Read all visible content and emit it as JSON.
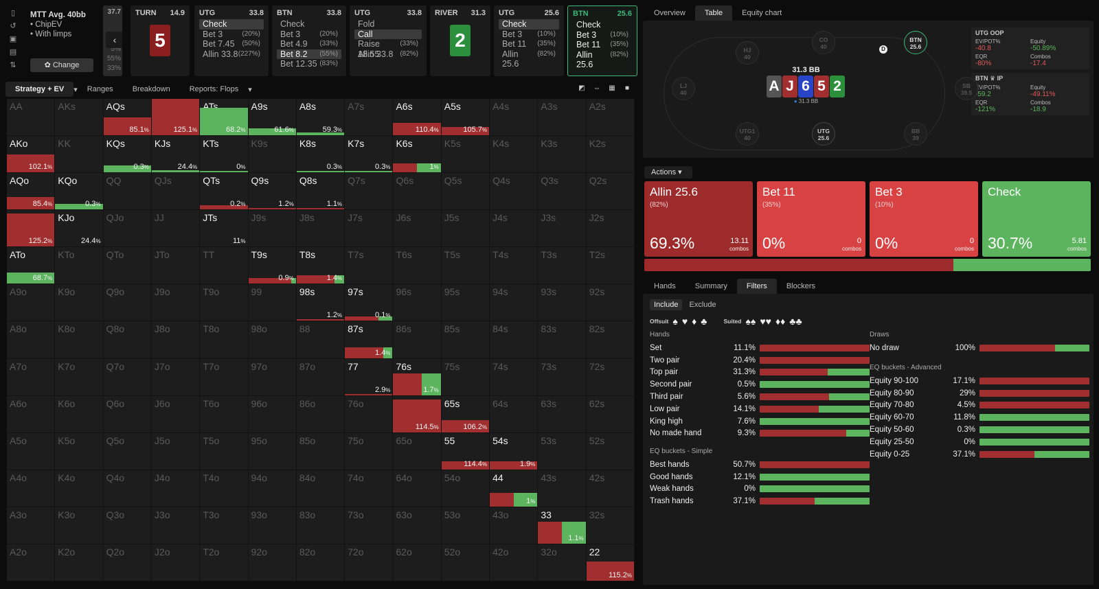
{
  "sidebar_icons": [
    "bookmark-icon",
    "history-icon",
    "save-icon",
    "library-icon",
    "sort-icon"
  ],
  "game": {
    "title": "MTT  Avg. 40bb",
    "items": [
      "ChipEV",
      "With limps"
    ],
    "change_label": "Change"
  },
  "prev_col": {
    "value": "37.7",
    "pcts": [
      "5%",
      "55%",
      "33%"
    ]
  },
  "streets": [
    {
      "pos": "TURN",
      "val": "14.9",
      "card": "5",
      "card_color": "#8b1f1f"
    },
    {
      "pos": "UTG",
      "val": "33.8",
      "opts": [
        {
          "l": "Check",
          "p": "",
          "sel": true
        },
        {
          "l": "Bet 3",
          "p": "(20%)"
        },
        {
          "l": "Bet 7.45",
          "p": "(50%)"
        },
        {
          "l": "Allin 33.8",
          "p": "(227%)"
        }
      ]
    },
    {
      "pos": "BTN",
      "val": "33.8",
      "opts": [
        {
          "l": "Check",
          "p": ""
        },
        {
          "l": "Bet 3",
          "p": "(20%)"
        },
        {
          "l": "Bet 4.9",
          "p": "(33%)"
        },
        {
          "l": "Bet 8.2",
          "p": "(55%)",
          "sel": true
        },
        {
          "l": "Bet 12.35",
          "p": "(83%)"
        }
      ]
    },
    {
      "pos": "UTG",
      "val": "33.8",
      "opts": [
        {
          "l": "Fold",
          "p": ""
        },
        {
          "l": "Call",
          "p": "",
          "sel": true
        },
        {
          "l": "Raise 18.55",
          "p": "(33%)"
        },
        {
          "l": "Allin 33.8",
          "p": "(82%)"
        }
      ]
    },
    {
      "pos": "RIVER",
      "val": "31.3",
      "card": "2",
      "card_color": "#2c8f3b"
    },
    {
      "pos": "UTG",
      "val": "25.6",
      "opts": [
        {
          "l": "Check",
          "p": "",
          "sel": true
        },
        {
          "l": "Bet 3",
          "p": "(10%)"
        },
        {
          "l": "Bet 11",
          "p": "(35%)"
        },
        {
          "l": "Allin 25.6",
          "p": "(82%)"
        }
      ]
    },
    {
      "pos": "BTN",
      "val": "25.6",
      "active": true,
      "opts": [
        {
          "l": "Check",
          "p": ""
        },
        {
          "l": "Bet 3",
          "p": "(10%)"
        },
        {
          "l": "Bet 11",
          "p": "(35%)"
        },
        {
          "l": "Allin 25.6",
          "p": "(82%)"
        }
      ]
    }
  ],
  "grid_tabs": [
    "Strategy + EV",
    "Ranges",
    "Breakdown",
    "Reports: Flops"
  ],
  "grid_tools": [
    "contrast-icon",
    "compact-icon",
    "grid-icon",
    "square-icon"
  ],
  "colors": {
    "red": "#a12f2f",
    "green": "#5cb55e",
    "accent": "#3dba7b",
    "bet_bright": "#d94242",
    "allin": "#9e2b2b"
  },
  "matrix_labels": [
    [
      "AA",
      "AKs",
      "AQs",
      "AJs",
      "ATs",
      "A9s",
      "A8s",
      "A7s",
      "A6s",
      "A5s",
      "A4s",
      "A3s",
      "A2s"
    ],
    [
      "AKo",
      "KK",
      "KQs",
      "KJs",
      "KTs",
      "K9s",
      "K8s",
      "K7s",
      "K6s",
      "K5s",
      "K4s",
      "K3s",
      "K2s"
    ],
    [
      "AQo",
      "KQo",
      "QQ",
      "QJs",
      "QTs",
      "Q9s",
      "Q8s",
      "Q7s",
      "Q6s",
      "Q5s",
      "Q4s",
      "Q3s",
      "Q2s"
    ],
    [
      "AJo",
      "KJo",
      "QJo",
      "JJ",
      "JTs",
      "J9s",
      "J8s",
      "J7s",
      "J6s",
      "J5s",
      "J4s",
      "J3s",
      "J2s"
    ],
    [
      "ATo",
      "KTo",
      "QTo",
      "JTo",
      "TT",
      "T9s",
      "T8s",
      "T7s",
      "T6s",
      "T5s",
      "T4s",
      "T3s",
      "T2s"
    ],
    [
      "A9o",
      "K9o",
      "Q9o",
      "J9o",
      "T9o",
      "99",
      "98s",
      "97s",
      "96s",
      "95s",
      "94s",
      "93s",
      "92s"
    ],
    [
      "A8o",
      "K8o",
      "Q8o",
      "J8o",
      "T8o",
      "98o",
      "88",
      "87s",
      "86s",
      "85s",
      "84s",
      "83s",
      "82s"
    ],
    [
      "A7o",
      "K7o",
      "Q7o",
      "J7o",
      "T7o",
      "97o",
      "87o",
      "77",
      "76s",
      "75s",
      "74s",
      "73s",
      "72s"
    ],
    [
      "A6o",
      "K6o",
      "Q6o",
      "J6o",
      "T6o",
      "96o",
      "86o",
      "76o",
      "66",
      "65s",
      "64s",
      "63s",
      "62s"
    ],
    [
      "A5o",
      "K5o",
      "Q5o",
      "J5o",
      "T5o",
      "95o",
      "85o",
      "75o",
      "65o",
      "55",
      "54s",
      "53s",
      "52s"
    ],
    [
      "A4o",
      "K4o",
      "Q4o",
      "J4o",
      "T4o",
      "94o",
      "84o",
      "74o",
      "64o",
      "54o",
      "44",
      "43s",
      "42s"
    ],
    [
      "A3o",
      "K3o",
      "Q3o",
      "J3o",
      "T3o",
      "93o",
      "83o",
      "73o",
      "63o",
      "53o",
      "43o",
      "33",
      "32s"
    ],
    [
      "A2o",
      "K2o",
      "Q2o",
      "J2o",
      "T2o",
      "92o",
      "82o",
      "72o",
      "62o",
      "52o",
      "42o",
      "32o",
      "22"
    ]
  ],
  "matrix_cells": {
    "AQs": {
      "ev": "85.1",
      "r": 1,
      "g": 0,
      "h": 26
    },
    "AJs": {
      "ev": "125.1",
      "r": 1,
      "g": 0,
      "h": 54
    },
    "ATs": {
      "ev": "68.2",
      "r": 0,
      "g": 1,
      "h": 40
    },
    "A9s": {
      "ev": "61.6",
      "r": 0,
      "g": 1,
      "h": 10
    },
    "A8s": {
      "ev": "59.3",
      "r": 0,
      "g": 1,
      "h": 4
    },
    "A6s": {
      "ev": "110.4",
      "r": 1,
      "g": 0,
      "h": 18
    },
    "A5s": {
      "ev": "105.7",
      "r": 1,
      "g": 0,
      "h": 12
    },
    "AKo": {
      "ev": "102.1",
      "r": 1,
      "g": 0,
      "h": 26
    },
    "KQs": {
      "ev": "0.3",
      "r": 0,
      "g": 1,
      "h": 10
    },
    "KJs": {
      "ev": "24.4",
      "r": 0,
      "g": 1,
      "h": 3
    },
    "KTs": {
      "ev": "0",
      "r": 0,
      "g": 1,
      "h": 2
    },
    "K8s": {
      "ev": "0.3",
      "r": 0,
      "g": 1,
      "h": 2
    },
    "K7s": {
      "ev": "0.3",
      "r": 0,
      "g": 1,
      "h": 2
    },
    "K6s": {
      "ev": "1",
      "r": 0.5,
      "g": 0.5,
      "h": 13
    },
    "AQo": {
      "ev": "85.4",
      "r": 1,
      "g": 0,
      "h": 18
    },
    "KQo": {
      "ev": "0.3",
      "r": 0,
      "g": 1,
      "h": 8
    },
    "QTs": {
      "ev": "0.2",
      "r": 1,
      "g": 0,
      "h": 6
    },
    "Q9s": {
      "ev": "1.2",
      "r": 1,
      "g": 0,
      "h": 2
    },
    "Q8s": {
      "ev": "1.1",
      "r": 1,
      "g": 0,
      "h": 2
    },
    "AJo": {
      "ev": "125.2",
      "r": 1,
      "g": 0,
      "h": 48
    },
    "KJo": {
      "ev": "24.4",
      "r": 0,
      "g": 1,
      "h": 0
    },
    "JTs": {
      "ev": "11",
      "r": 0,
      "g": 1,
      "h": 0
    },
    "ATo": {
      "ev": "68.7",
      "r": 0,
      "g": 1,
      "h": 16
    },
    "T9s": {
      "ev": "0.9",
      "r": 0.9,
      "g": 0.1,
      "h": 8
    },
    "T8s": {
      "ev": "1.4",
      "r": 0.8,
      "g": 0.2,
      "h": 12
    },
    "98s": {
      "ev": "1.2",
      "r": 1,
      "g": 0,
      "h": 2
    },
    "97s": {
      "ev": "0.1",
      "r": 0.7,
      "g": 0.3,
      "h": 6
    },
    "87s": {
      "ev": "1.4",
      "r": 0.8,
      "g": 0.2,
      "h": 16
    },
    "77": {
      "ev": "2.9",
      "r": 1,
      "g": 0,
      "h": 2
    },
    "76s": {
      "ev": "1.7",
      "r": 0.6,
      "g": 0.4,
      "h": 32
    },
    "66": {
      "ev": "114.5",
      "r": 1,
      "g": 0,
      "h": 48
    },
    "65s": {
      "ev": "106.2",
      "r": 1,
      "g": 0,
      "h": 18
    },
    "55": {
      "ev": "114.4",
      "r": 1,
      "g": 0,
      "h": 12
    },
    "54s": {
      "ev": "1.9",
      "r": 1,
      "g": 0,
      "h": 12
    },
    "44": {
      "ev": "1",
      "r": 0.5,
      "g": 0.5,
      "h": 20
    },
    "33": {
      "ev": "1.1",
      "r": 0.5,
      "g": 0.5,
      "h": 32
    },
    "22": {
      "ev": "115.2",
      "r": 1,
      "g": 0,
      "h": 28
    }
  },
  "right_tabs": [
    "Overview",
    "Table",
    "Equity chart"
  ],
  "table": {
    "pot": "31.3 BB",
    "stack": "31.3 BB",
    "board": [
      {
        "c": "A",
        "col": "#555"
      },
      {
        "c": "J",
        "col": "#a12f2f"
      },
      {
        "c": "6",
        "col": "#2845c8"
      },
      {
        "c": "5",
        "col": "#a12f2f"
      },
      {
        "c": "2",
        "col": "#2c8f3b"
      }
    ],
    "seats": [
      {
        "n": "HJ",
        "v": "40",
        "on": false,
        "x": 85,
        "y": 30
      },
      {
        "n": "CO",
        "v": "40",
        "on": false,
        "x": 196,
        "y": 15
      },
      {
        "n": "BTN",
        "v": "25.6",
        "on": true,
        "hl": true,
        "x": 330,
        "y": 15
      },
      {
        "n": "LJ",
        "v": "40",
        "on": false,
        "x": -8,
        "y": 82
      },
      {
        "n": "SB",
        "v": "39.5",
        "on": false,
        "x": 404,
        "y": 82
      },
      {
        "n": "UTG1",
        "v": "40",
        "on": false,
        "x": 85,
        "y": 148
      },
      {
        "n": "UTG",
        "v": "25.6",
        "on": true,
        "x": 196,
        "y": 148
      },
      {
        "n": "BB",
        "v": "39",
        "on": false,
        "x": 330,
        "y": 148
      }
    ],
    "dealer": "D",
    "stat_boxes": [
      {
        "title": "UTG  OOP",
        "items": [
          {
            "k": "EV/POT%",
            "v": "-40.8",
            "u": "%",
            "g": false
          },
          {
            "k": "Equity",
            "v": "-50.89%",
            "g": true
          },
          {
            "k": "EQR",
            "v": "-80%",
            "g": false
          },
          {
            "k": "Combos",
            "v": "-17.4",
            "g": false
          }
        ]
      },
      {
        "title": "BTN ♛ IP",
        "items": [
          {
            "k": "EV/POT%",
            "v": "-59.2",
            "u": "%",
            "g": true
          },
          {
            "k": "Equity",
            "v": "-49.11%",
            "g": false
          },
          {
            "k": "EQR",
            "v": "-121%",
            "g": true
          },
          {
            "k": "Combos",
            "v": "-18.9",
            "g": true
          }
        ]
      }
    ]
  },
  "actions": {
    "label": "Actions",
    "boxes": [
      {
        "name": "Allin 25.6",
        "pct": "(82%)",
        "freq": "69.3%",
        "combos": "13.11",
        "combo_lbl": "combos",
        "color": "#9e2b2b"
      },
      {
        "name": "Bet 11",
        "pct": "(35%)",
        "freq": "0%",
        "combos": "0",
        "combo_lbl": "combos",
        "color": "#d94242"
      },
      {
        "name": "Bet 3",
        "pct": "(10%)",
        "freq": "0%",
        "combos": "0",
        "combo_lbl": "combos",
        "color": "#d94242"
      },
      {
        "name": "Check",
        "pct": "",
        "freq": "30.7%",
        "combos": "5.81",
        "combo_lbl": "combos",
        "color": "#5cb55e"
      }
    ],
    "freq_red": 69.3,
    "freq_green": 30.7
  },
  "bottom_tabs": [
    "Hands",
    "Summary",
    "Filters",
    "Blockers"
  ],
  "filters": {
    "include": "Include",
    "exclude": "Exclude",
    "offsuit": "Offsuit",
    "suited": "Suited",
    "hands_title": "Hands",
    "hands": [
      {
        "n": "Set",
        "p": "11.1%",
        "r": 1,
        "g": 0
      },
      {
        "n": "Two pair",
        "p": "20.4%",
        "r": 1,
        "g": 0
      },
      {
        "n": "Top pair",
        "p": "31.3%",
        "r": 0.62,
        "g": 0.38
      },
      {
        "n": "Second pair",
        "p": "0.5%",
        "r": 0,
        "g": 1
      },
      {
        "n": "Third pair",
        "p": "5.6%",
        "r": 0.63,
        "g": 0.37
      },
      {
        "n": "Low pair",
        "p": "14.1%",
        "r": 0.54,
        "g": 0.46
      },
      {
        "n": "King high",
        "p": "7.6%",
        "r": 0,
        "g": 1
      },
      {
        "n": "No made hand",
        "p": "9.3%",
        "r": 0.79,
        "g": 0.21
      }
    ],
    "eq_simple_title": "EQ buckets - Simple",
    "eq_simple": [
      {
        "n": "Best hands",
        "p": "50.7%",
        "r": 1,
        "g": 0
      },
      {
        "n": "Good hands",
        "p": "12.1%",
        "r": 0,
        "g": 1
      },
      {
        "n": "Weak hands",
        "p": "0%",
        "r": 0,
        "g": 1
      },
      {
        "n": "Trash hands",
        "p": "37.1%",
        "r": 0.5,
        "g": 0.5
      }
    ],
    "draws_title": "Draws",
    "draws": [
      {
        "n": "No draw",
        "p": "100%",
        "r": 0.69,
        "g": 0.31
      }
    ],
    "eq_adv_title": "EQ buckets - Advanced",
    "eq_adv": [
      {
        "n": "Equity 90-100",
        "p": "17.1%",
        "r": 1,
        "g": 0
      },
      {
        "n": "Equity 80-90",
        "p": "29%",
        "r": 1,
        "g": 0
      },
      {
        "n": "Equity 70-80",
        "p": "4.5%",
        "r": 1,
        "g": 0
      },
      {
        "n": "Equity 60-70",
        "p": "11.8%",
        "r": 0,
        "g": 1
      },
      {
        "n": "Equity 50-60",
        "p": "0.3%",
        "r": 0,
        "g": 1
      },
      {
        "n": "Equity 25-50",
        "p": "0%",
        "r": 0,
        "g": 1
      },
      {
        "n": "Equity 0-25",
        "p": "37.1%",
        "r": 0.5,
        "g": 0.5
      }
    ]
  }
}
